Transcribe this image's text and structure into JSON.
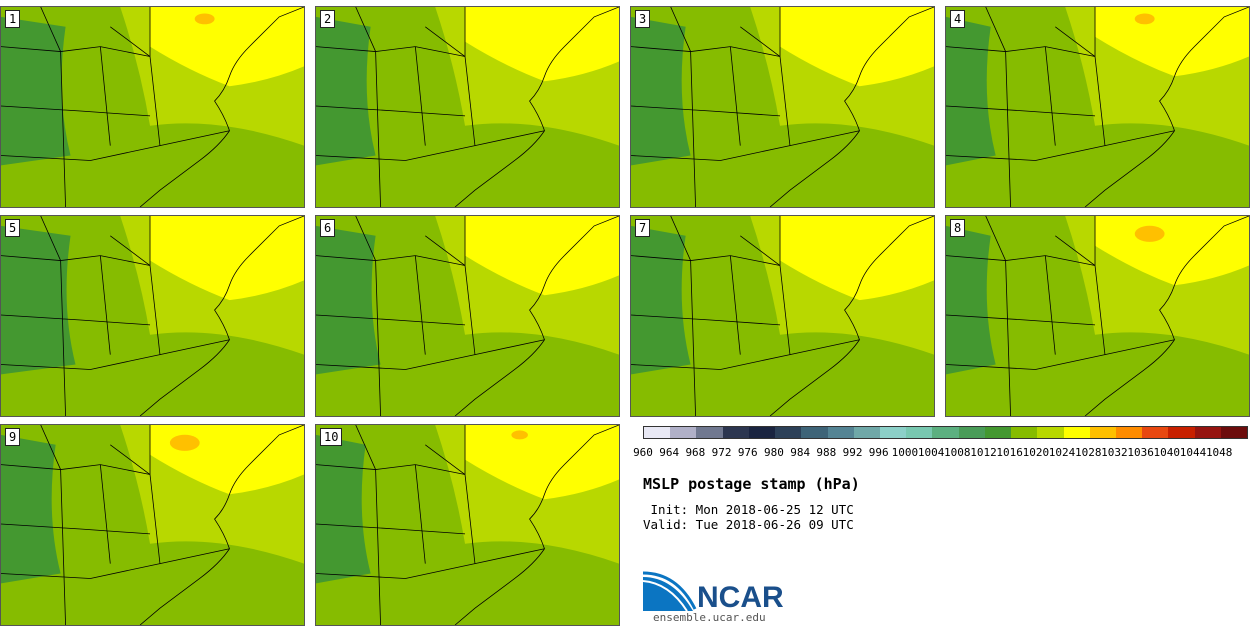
{
  "stamps": [
    {
      "label": "1"
    },
    {
      "label": "2"
    },
    {
      "label": "3"
    },
    {
      "label": "4"
    },
    {
      "label": "5"
    },
    {
      "label": "6"
    },
    {
      "label": "7"
    },
    {
      "label": "8"
    },
    {
      "label": "9"
    },
    {
      "label": "10"
    }
  ],
  "colorbar": {
    "ticks": [
      "960",
      "964",
      "968",
      "972",
      "976",
      "980",
      "984",
      "988",
      "992",
      "996",
      "1000",
      "1004",
      "1008",
      "1012",
      "1016",
      "1020",
      "1024",
      "1028",
      "1032",
      "1036",
      "1040",
      "1044",
      "1048"
    ],
    "colors": [
      "#e8e8f4",
      "#b0b0c8",
      "#707890",
      "#2c3650",
      "#1a2440",
      "#2c4058",
      "#3e6478",
      "#548494",
      "#6fa8a8",
      "#8cd0c8",
      "#78c8b0",
      "#5cb080",
      "#4a9c58",
      "#449830",
      "#86bc00",
      "#b8d800",
      "#ffff00",
      "#ffc000",
      "#ff8c00",
      "#e84810",
      "#c82000",
      "#961410",
      "#6c0c0c"
    ]
  },
  "title": "MSLP postage stamp (hPa)",
  "init": " Init: Mon 2018-06-25 12 UTC",
  "valid": "Valid: Tue 2018-06-26 09 UTC",
  "logo_text": "NCAR",
  "url": "ensemble.ucar.edu",
  "map_colors": {
    "c1012": "#449830",
    "c1016": "#86bc00",
    "c1020": "#b8d800",
    "c1024": "#ffff00",
    "c1028": "#ffc000"
  }
}
